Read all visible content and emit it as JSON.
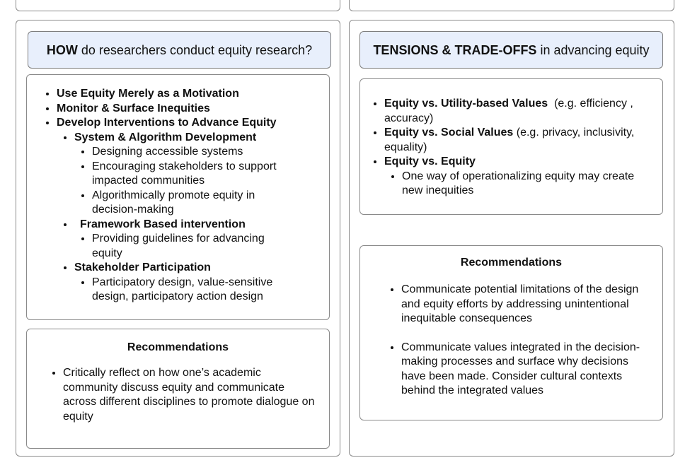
{
  "how": {
    "title_bold": "HOW",
    "title_rest": " do researchers conduct equity research?",
    "items": [
      {
        "label": "Use Equity Merely as a Motivation"
      },
      {
        "label": "Monitor & Surface Inequities"
      },
      {
        "label": "Develop Interventions to Advance Equity"
      }
    ],
    "sub": [
      {
        "label": "System & Algorithm Development",
        "children": [
          "Designing accessible systems",
          "Encouraging stakeholders to support impacted communities",
          "Algorithmically promote equity in decision-making"
        ]
      },
      {
        "label": "Framework Based intervention",
        "children": [
          "Providing guidelines for advancing equity"
        ]
      },
      {
        "label": "Stakeholder Participation",
        "children": [
          "Participatory design, value-sensitive design, participatory action design"
        ]
      }
    ],
    "recommendations": {
      "heading": "Recommendations",
      "items": [
        "Critically reflect on how one’s academic community discuss equity and communicate across different disciplines to promote dialogue on equity"
      ]
    }
  },
  "tensions": {
    "title_bold": "TENSIONS & TRADE-OFFS",
    "title_rest": " in advancing equity",
    "items": [
      {
        "label": "Equity vs. Utility-based Values",
        "note": "  (e.g. efficiency , accuracy)"
      },
      {
        "label": "Equity vs. Social Values",
        "note": " (e.g. privacy, inclusivity, equality)"
      },
      {
        "label": "Equity vs. Equity",
        "note": ""
      }
    ],
    "equity_sub": [
      "One way of operationalizing equity may create new inequities"
    ],
    "recommendations": {
      "heading": "Recommendations",
      "items": [
        "Communicate potential limitations of the design and equity efforts by addressing unintentional inequitable consequences",
        "Communicate values integrated in the decision-making processes and surface why decisions have been made. Consider cultural contexts behind the integrated values"
      ]
    }
  }
}
